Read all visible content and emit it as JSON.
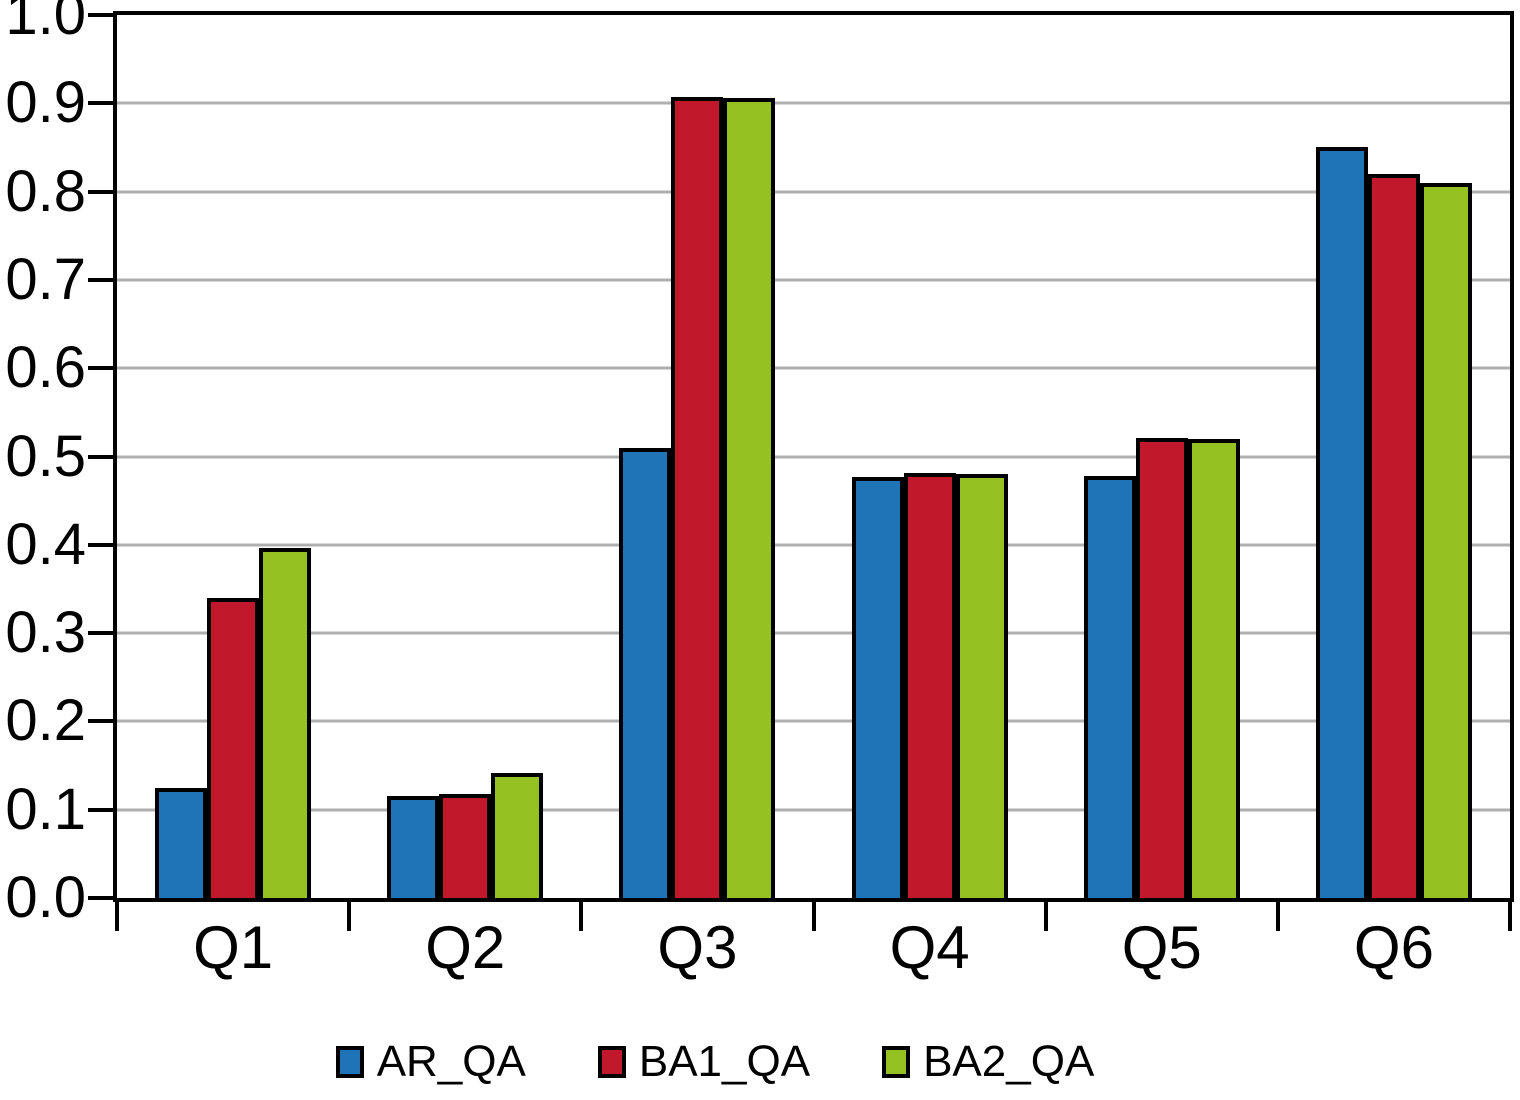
{
  "figure": {
    "background": "#FFFFFF",
    "axis_color": "#000000",
    "gridline_color": "#AFAFAF"
  },
  "chart_data": {
    "type": "bar",
    "title": "",
    "xlabel": "",
    "ylabel": "",
    "categories": [
      "Q1",
      "Q2",
      "Q3",
      "Q4",
      "Q5",
      "Q6"
    ],
    "series": [
      {
        "name": "AR_QA",
        "color": "#1F73B7",
        "values": [
          0.125,
          0.115,
          0.51,
          0.477,
          0.478,
          0.85
        ]
      },
      {
        "name": "BA1_QA",
        "color": "#C2182B",
        "values": [
          0.34,
          0.118,
          0.907,
          0.481,
          0.521,
          0.82
        ]
      },
      {
        "name": "BA2_QA",
        "color": "#96C122",
        "values": [
          0.396,
          0.142,
          0.906,
          0.48,
          0.52,
          0.81
        ]
      }
    ],
    "ylim": [
      0.0,
      1.0
    ],
    "ytick_step": 0.1,
    "yticks": [
      "0.0",
      "0.1",
      "0.2",
      "0.3",
      "0.4",
      "0.5",
      "0.6",
      "0.7",
      "0.8",
      "0.9",
      "1.0"
    ],
    "grid": true,
    "legend_position": "bottom"
  }
}
